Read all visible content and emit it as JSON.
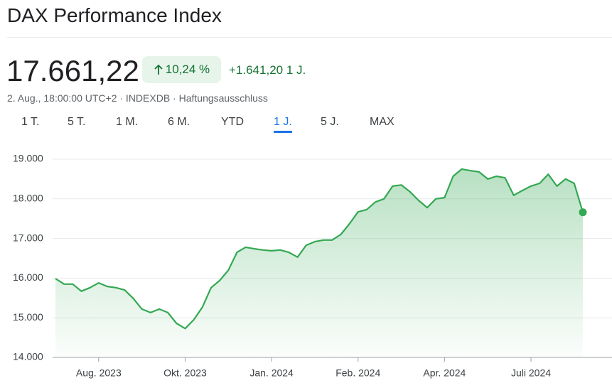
{
  "header": {
    "title": "DAX Performance Index",
    "price": "17.661,22",
    "change_percent": "10,24 %",
    "change_abs": "+1.641,20",
    "change_period": "1 J.",
    "subtitle": "2. Aug., 18:00:00 UTC+2 · INDEXDB · Haftungsausschluss"
  },
  "tabs": [
    "1 T.",
    "5 T.",
    "1 M.",
    "6 M.",
    "YTD",
    "1 J.",
    "5 J.",
    "MAX"
  ],
  "selected_tab": "1 J.",
  "chart_data": {
    "type": "line",
    "categories": [
      null,
      null,
      null,
      null,
      null,
      "Aug. 2023",
      null,
      null,
      null,
      null,
      null,
      null,
      null,
      null,
      null,
      "Okt. 2023",
      null,
      null,
      null,
      null,
      null,
      null,
      null,
      null,
      null,
      "Jan. 2024",
      null,
      null,
      null,
      null,
      null,
      null,
      null,
      null,
      null,
      "Feb. 2024",
      null,
      null,
      null,
      null,
      null,
      null,
      null,
      null,
      null,
      "Apr. 2024",
      null,
      null,
      null,
      null,
      null,
      null,
      null,
      null,
      null,
      "Juli 2024",
      null,
      null,
      null,
      null,
      null,
      null
    ],
    "series": [
      {
        "color": "#34a853",
        "values": [
          15990,
          15850,
          15850,
          15670,
          15760,
          15880,
          15790,
          15760,
          15700,
          15490,
          15220,
          15130,
          15220,
          15130,
          14860,
          14730,
          14950,
          15270,
          15760,
          15940,
          16200,
          16650,
          16780,
          16740,
          16710,
          16690,
          16710,
          16650,
          16530,
          16830,
          16920,
          16960,
          16960,
          17100,
          17370,
          17670,
          17730,
          17920,
          18000,
          18320,
          18350,
          18180,
          17960,
          17780,
          18000,
          18030,
          18570,
          18750,
          18710,
          18680,
          18500,
          18570,
          18530,
          18090,
          18210,
          18320,
          18390,
          18620,
          18320,
          18500,
          18390,
          17661.22
        ]
      }
    ],
    "ylim": [
      14000,
      19000
    ],
    "yticks": [
      {
        "value": 14000,
        "label": "14.000"
      },
      {
        "value": 15000,
        "label": "15.000"
      },
      {
        "value": 16000,
        "label": "16.000"
      },
      {
        "value": 17000,
        "label": "17.000"
      },
      {
        "value": 18000,
        "label": "18.000"
      },
      {
        "value": 19000,
        "label": "19.000"
      }
    ],
    "grid": true
  }
}
